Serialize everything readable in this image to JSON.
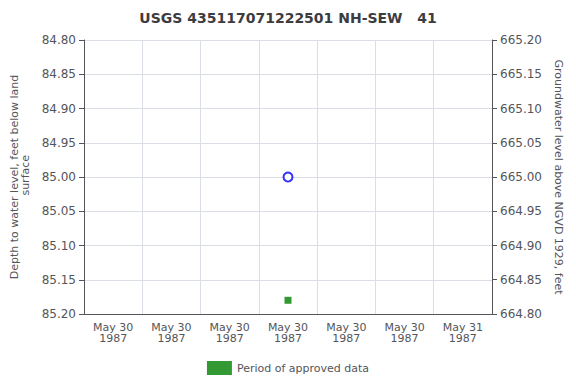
{
  "chart_data": {
    "type": "scatter",
    "title": "USGS 435117071222501 NH-SEW   41",
    "ylabel": "Depth to water level, feet below land\n surface",
    "y2label": "Groundwater level above NGVD 1929, feet",
    "categories": [
      "May 30\n1987",
      "May 30\n1987",
      "May 30\n1987",
      "May 30\n1987",
      "May 30\n1987",
      "May 30\n1987",
      "May 31\n1987"
    ],
    "series": [
      {
        "values": [
          null,
          null,
          null,
          85.0,
          null,
          null,
          null
        ],
        "color": "blue",
        "marker": "open_circle"
      },
      {
        "name": "Period of approved data",
        "values": [
          null,
          null,
          null,
          85.18,
          null,
          null,
          null
        ],
        "color": "green",
        "marker": "square"
      }
    ],
    "ylim": [
      85.2,
      84.8
    ],
    "yticks": [
      {
        "value": 84.8,
        "label": "84.80"
      },
      84.85,
      {
        "value": 84.9,
        "label": "84.90"
      },
      84.95,
      {
        "value": 85.0,
        "label": "85.00"
      },
      85.05,
      {
        "value": 85.1,
        "label": "85.10"
      },
      85.15,
      {
        "value": 85.2,
        "label": "85.20"
      }
    ],
    "y2lim": [
      664.8,
      665.2
    ],
    "y2ticks": [
      {
        "value": 665.2,
        "label": "665.20"
      },
      665.15,
      {
        "value": 665.1,
        "label": "665.10"
      },
      665.05,
      {
        "value": 665.0,
        "label": "665.00"
      },
      664.95,
      {
        "value": 664.9,
        "label": "664.90"
      },
      664.85,
      {
        "value": 664.8,
        "label": "664.80"
      }
    ],
    "grid": true,
    "legend": "bottom"
  }
}
